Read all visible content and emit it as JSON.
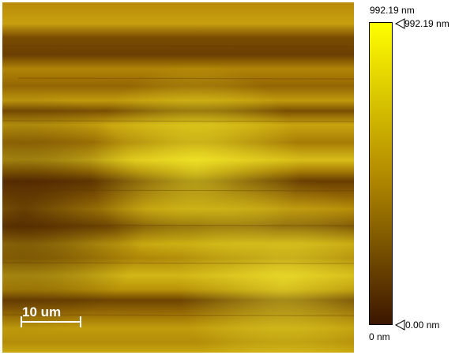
{
  "image": {
    "scale_bar_label": "10 um"
  },
  "colorbar": {
    "top_label": "992.19 nm",
    "top_marker_label": "992.19 nm",
    "bottom_label": "0 nm",
    "bottom_marker_label": "0.00 nm",
    "top_color": "#ffff00",
    "bottom_color": "#3c1600"
  }
}
